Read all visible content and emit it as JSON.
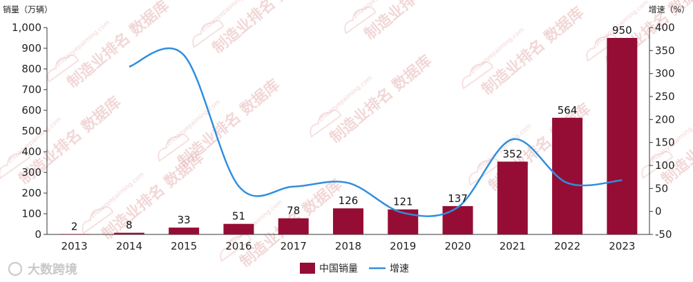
{
  "chart_data": {
    "type": "bar",
    "categories": [
      "2013",
      "2014",
      "2015",
      "2016",
      "2017",
      "2018",
      "2019",
      "2020",
      "2021",
      "2022",
      "2023"
    ],
    "series": [
      {
        "name": "中国销量",
        "type": "bar",
        "axis": "left",
        "values": [
          2,
          8,
          33,
          51,
          78,
          126,
          121,
          137,
          352,
          564,
          950
        ],
        "data_labels": [
          "2",
          "8",
          "33",
          "51",
          "78",
          "126",
          "121",
          "137",
          "352",
          "564",
          "950"
        ],
        "color": "#950d34"
      },
      {
        "name": "增速",
        "type": "line",
        "axis": "right",
        "values": [
          null,
          315,
          340,
          55,
          54,
          62,
          -3,
          9,
          157,
          62,
          68
        ],
        "color": "#2f8ede"
      }
    ],
    "ylabel_left": "销量（万辆）",
    "ylabel_right": "增速（%）",
    "ylim_left": [
      0,
      1000
    ],
    "ylim_right": [
      -50,
      400
    ],
    "yticks_left": [
      "0",
      "100",
      "200",
      "300",
      "400",
      "500",
      "600",
      "700",
      "800",
      "900",
      "1,000"
    ],
    "yticks_right": [
      "-50",
      "0",
      "50",
      "100",
      "150",
      "200",
      "250",
      "300",
      "350",
      "400"
    ],
    "grid": false,
    "legend_position": "bottom"
  },
  "watermark": {
    "text": "制造业排名 数据库",
    "url": "zhizaoyepaiming.com"
  },
  "brand": {
    "text": "大数跨境"
  }
}
